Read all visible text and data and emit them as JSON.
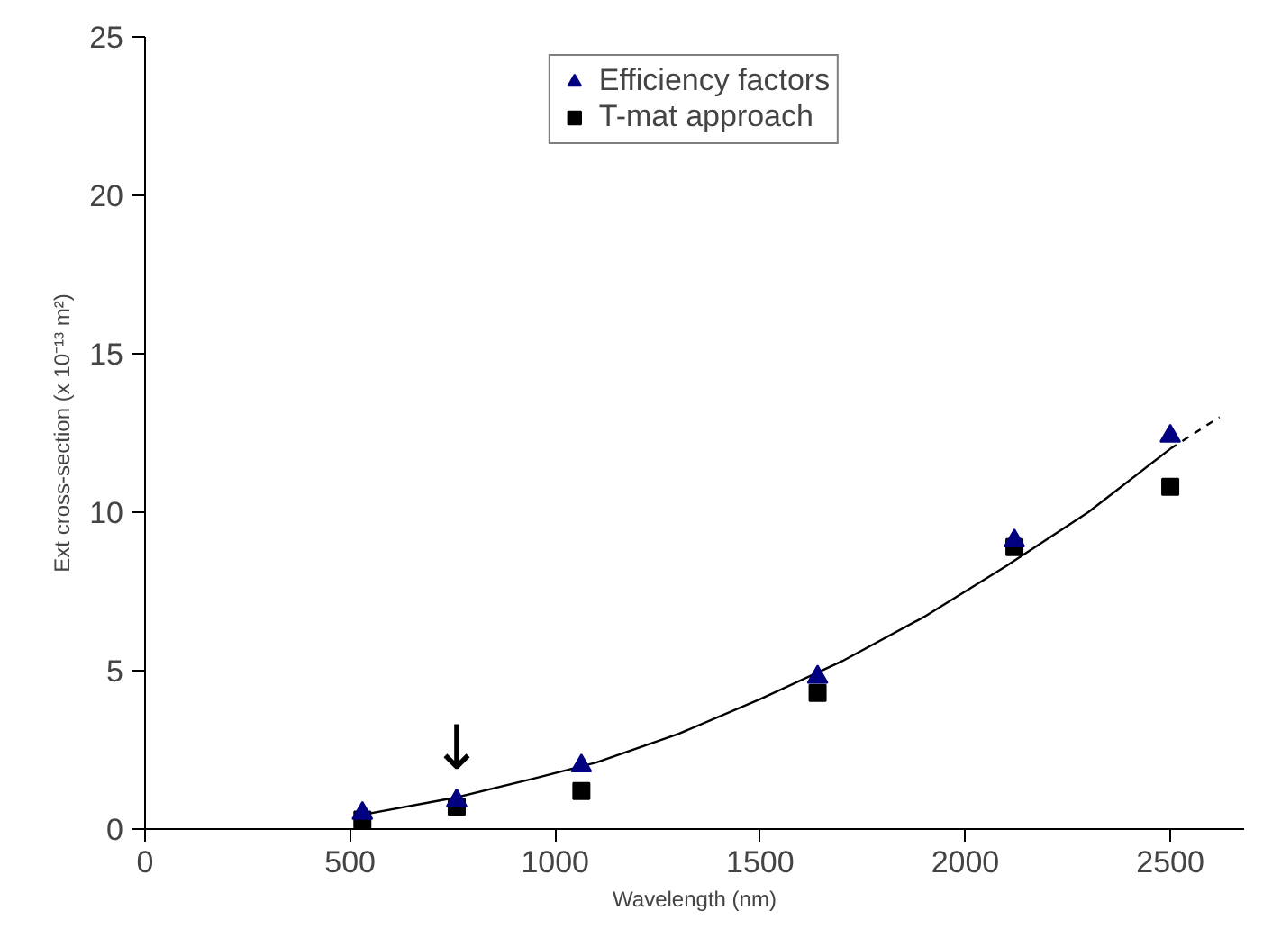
{
  "chart_data": {
    "type": "scatter",
    "xlabel": "Wavelength (nm)",
    "ylabel": "Ext cross-section (x 10⁻¹³ m²)",
    "xlim": [
      0,
      2680
    ],
    "ylim": [
      0,
      25
    ],
    "xticks": [
      0,
      500,
      1000,
      1500,
      2000,
      2500
    ],
    "yticks": [
      0,
      5,
      10,
      15,
      20,
      25
    ],
    "grid": false,
    "legend": "top",
    "series": [
      {
        "name": "Efficiency factors",
        "color": "#000080",
        "marker": "triangle",
        "x": [
          530,
          760,
          1064,
          1640,
          2120,
          2500
        ],
        "values": [
          0.5,
          0.9,
          2.0,
          4.8,
          9.1,
          12.4
        ]
      },
      {
        "name": "T-mat approach",
        "color": "#000000",
        "marker": "square",
        "x": [
          530,
          760,
          1064,
          1640,
          2120,
          2500
        ],
        "values": [
          0.3,
          0.7,
          1.2,
          4.3,
          8.9,
          10.8
        ]
      },
      {
        "type": "line",
        "color": "#000000",
        "line_style": "solid",
        "marker": "none",
        "x": [
          530,
          760,
          950,
          1100,
          1300,
          1500,
          1700,
          1900,
          2100,
          2300,
          2500
        ],
        "values": [
          0.45,
          1.0,
          1.6,
          2.1,
          3.0,
          4.1,
          5.3,
          6.7,
          8.3,
          10.0,
          12.0
        ]
      },
      {
        "type": "line",
        "color": "#000000",
        "line_style": "dashed",
        "marker": "none",
        "x": [
          2500,
          2620
        ],
        "values": [
          12.0,
          13.0
        ]
      }
    ],
    "annotations": [
      {
        "text": "↓",
        "x": 760,
        "y": 1.4
      }
    ]
  }
}
